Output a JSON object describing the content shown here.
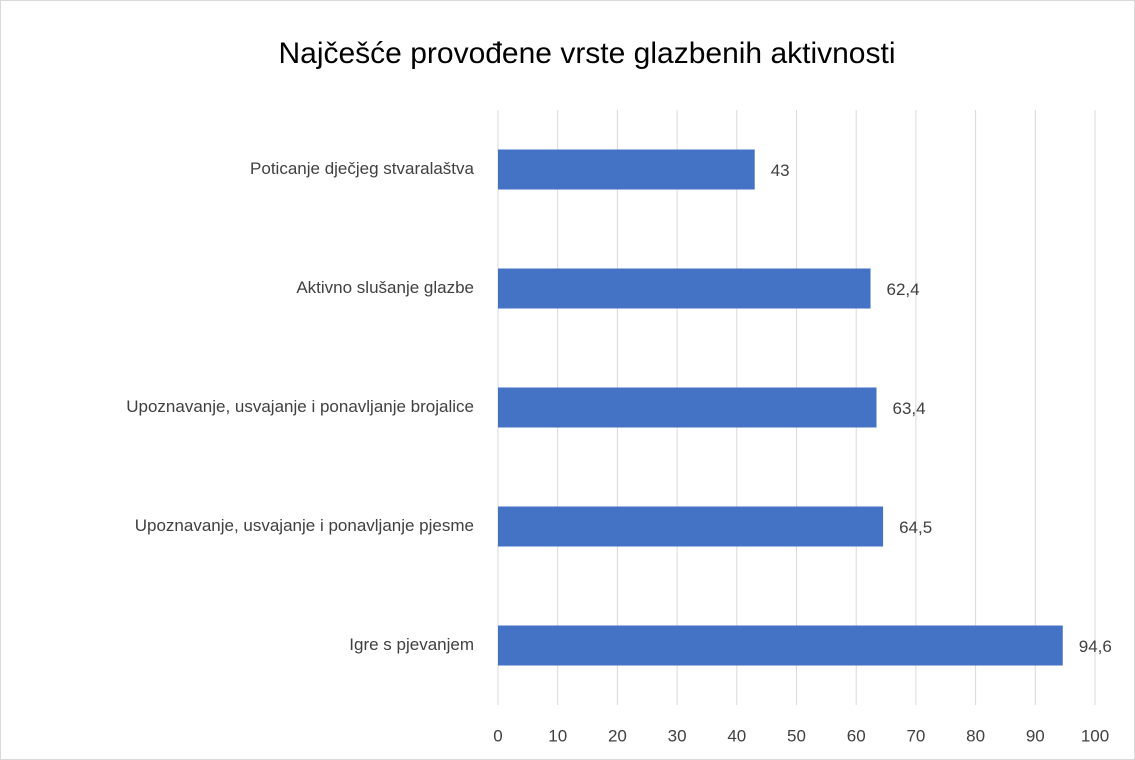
{
  "chart_data": {
    "type": "barh",
    "title": "Najčešće provođene vrste glazbenih aktivnosti",
    "categories": [
      "Poticanje dječjeg stvaralaštva",
      "Aktivno slušanje glazbe",
      "Upoznavanje, usvajanje i ponavljanje brojalice",
      "Upoznavanje, usvajanje i ponavljanje pjesme",
      "Igre s pjevanjem"
    ],
    "values": [
      43,
      62.4,
      63.4,
      64.5,
      94.6
    ],
    "value_labels": [
      "43",
      "62,4",
      "63,4",
      "64,5",
      "94,6"
    ],
    "color": "#4472c4",
    "xlim": [
      0,
      100
    ],
    "xticks": [
      0,
      10,
      20,
      30,
      40,
      50,
      60,
      70,
      80,
      90,
      100
    ],
    "grid": true
  }
}
